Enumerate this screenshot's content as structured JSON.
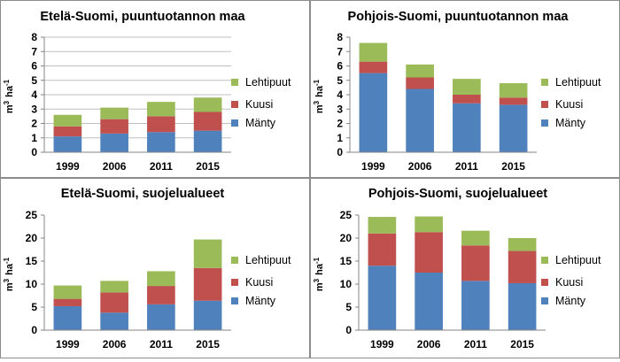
{
  "chart_data": [
    {
      "type": "bar",
      "stacked": true,
      "title": "Etelä-Suomi, puuntuotannon maa",
      "ylabel_base": "m",
      "ylabel_sup": "3",
      "ylabel_unit": "ha",
      "ylabel_unit_sup": "-1",
      "categories": [
        "1999",
        "2006",
        "2011",
        "2015"
      ],
      "ylim": [
        0,
        8
      ],
      "yticks": [
        0,
        1,
        2,
        3,
        4,
        5,
        6,
        7,
        8
      ],
      "grid": true,
      "legend_position": "right",
      "series": [
        {
          "name": "Mänty",
          "color": "#4f81bd",
          "values": [
            1.1,
            1.3,
            1.4,
            1.5
          ]
        },
        {
          "name": "Kuusi",
          "color": "#c0504d",
          "values": [
            0.7,
            1.0,
            1.1,
            1.3
          ]
        },
        {
          "name": "Lehtipuut",
          "color": "#9bbb59",
          "values": [
            0.8,
            0.8,
            1.0,
            1.0
          ]
        }
      ]
    },
    {
      "type": "bar",
      "stacked": true,
      "title": "Pohjois-Suomi, puuntuotannon maa",
      "ylabel_base": "m",
      "ylabel_sup": "3",
      "ylabel_unit": "ha",
      "ylabel_unit_sup": "-1",
      "categories": [
        "1999",
        "2006",
        "2011",
        "2015"
      ],
      "ylim": [
        0,
        8
      ],
      "yticks": [
        0,
        1,
        2,
        3,
        4,
        5,
        6,
        7,
        8
      ],
      "grid": false,
      "legend_position": "right",
      "series": [
        {
          "name": "Mänty",
          "color": "#4f81bd",
          "values": [
            5.5,
            4.4,
            3.4,
            3.3
          ]
        },
        {
          "name": "Kuusi",
          "color": "#c0504d",
          "values": [
            0.8,
            0.8,
            0.6,
            0.5
          ]
        },
        {
          "name": "Lehtipuut",
          "color": "#9bbb59",
          "values": [
            1.3,
            0.9,
            1.1,
            1.0
          ]
        }
      ]
    },
    {
      "type": "bar",
      "stacked": true,
      "title": "Etelä-Suomi, suojelualueet",
      "ylabel_base": "m",
      "ylabel_sup": "3",
      "ylabel_unit": "ha",
      "ylabel_unit_sup": "-1",
      "categories": [
        "1999",
        "2006",
        "2011",
        "2015"
      ],
      "ylim": [
        0,
        25
      ],
      "yticks": [
        0,
        5,
        10,
        15,
        20,
        25
      ],
      "grid": false,
      "legend_position": "right",
      "series": [
        {
          "name": "Mänty",
          "color": "#4f81bd",
          "values": [
            5.2,
            3.8,
            5.6,
            6.4
          ]
        },
        {
          "name": "Kuusi",
          "color": "#c0504d",
          "values": [
            1.6,
            4.4,
            4.0,
            7.1
          ]
        },
        {
          "name": "Lehtipuut",
          "color": "#9bbb59",
          "values": [
            2.9,
            2.5,
            3.2,
            6.2
          ]
        }
      ]
    },
    {
      "type": "bar",
      "stacked": true,
      "title": "Pohjois-Suomi, suojelualueet",
      "ylabel_base": "m",
      "ylabel_sup": "3",
      "ylabel_unit": "ha",
      "ylabel_unit_sup": "-1",
      "categories": [
        "1999",
        "2006",
        "2011",
        "2015"
      ],
      "ylim": [
        0,
        25
      ],
      "yticks": [
        0,
        5,
        10,
        15,
        20,
        25
      ],
      "grid": false,
      "legend_position": "right",
      "series": [
        {
          "name": "Mänty",
          "color": "#4f81bd",
          "values": [
            14.0,
            12.5,
            10.7,
            10.2
          ]
        },
        {
          "name": "Kuusi",
          "color": "#c0504d",
          "values": [
            7.0,
            8.8,
            7.7,
            7.0
          ]
        },
        {
          "name": "Lehtipuut",
          "color": "#9bbb59",
          "values": [
            3.6,
            3.4,
            3.2,
            2.8
          ]
        }
      ]
    }
  ]
}
